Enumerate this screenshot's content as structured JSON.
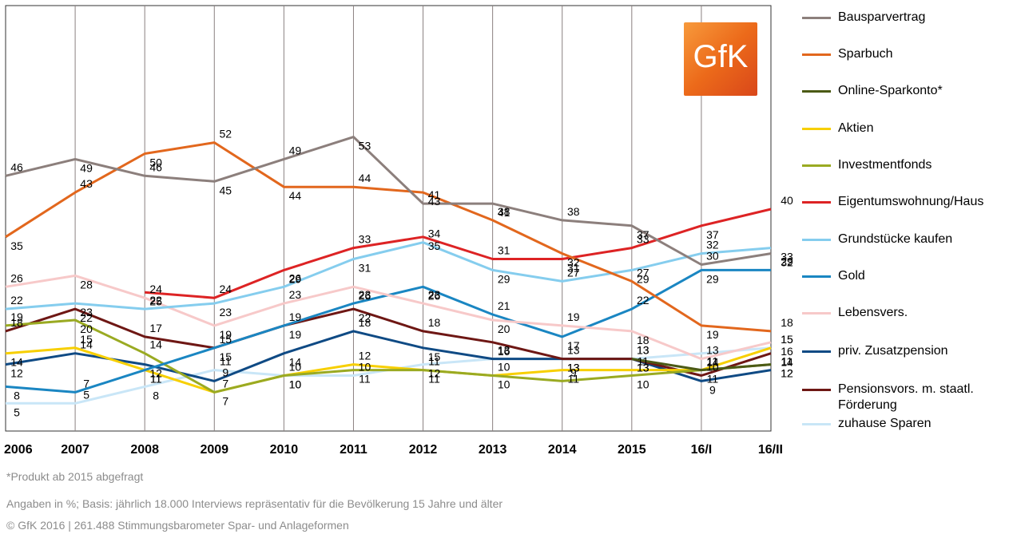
{
  "chart_data": {
    "type": "line",
    "title": "",
    "xlabel": "",
    "ylabel": "",
    "categories": [
      "2006",
      "2007",
      "2008",
      "2009",
      "2010",
      "2011",
      "2012",
      "2013",
      "2014",
      "2015",
      "16/I",
      "16/II"
    ],
    "ylim": [
      0,
      70
    ],
    "grid": "vertical",
    "legend_position": "right",
    "series": [
      {
        "name": "Bausparvertrag",
        "color": "#8c7f7c",
        "values": [
          46,
          49,
          46,
          45,
          49,
          53,
          41,
          41,
          38,
          37,
          30,
          32
        ]
      },
      {
        "name": "Sparbuch",
        "color": "#e2671d",
        "values": [
          35,
          43,
          50,
          52,
          44,
          44,
          43,
          38,
          32,
          27,
          19,
          18
        ]
      },
      {
        "name": "Online-Sparkonto*",
        "color": "#4b5a15",
        "values": [
          null,
          null,
          null,
          null,
          null,
          null,
          null,
          null,
          null,
          13,
          11,
          12
        ]
      },
      {
        "name": "Aktien",
        "color": "#f7cf00",
        "values": [
          14,
          15,
          11,
          7,
          10,
          12,
          11,
          10,
          11,
          11,
          11,
          15
        ]
      },
      {
        "name": "Investmentfonds",
        "color": "#9aaa22",
        "values": [
          19,
          20,
          14,
          7,
          10,
          11,
          11,
          10,
          9,
          10,
          11,
          12
        ]
      },
      {
        "name": "Eigentumswohnung/Haus",
        "color": "#dd2324",
        "values": [
          null,
          null,
          25,
          24,
          29,
          33,
          35,
          31,
          31,
          33,
          37,
          40
        ]
      },
      {
        "name": "Grundstücke kaufen",
        "color": "#85cdee",
        "values": [
          22,
          23,
          22,
          23,
          26,
          31,
          34,
          29,
          27,
          29,
          32,
          33
        ]
      },
      {
        "name": "Gold",
        "color": "#1a86c2",
        "values": [
          8,
          7,
          11,
          15,
          19,
          23,
          26,
          21,
          17,
          22,
          29,
          29
        ]
      },
      {
        "name": "Lebensvers.",
        "color": "#f7c9c9",
        "values": [
          26,
          28,
          24,
          19,
          23,
          26,
          23,
          20,
          19,
          18,
          13,
          16
        ]
      },
      {
        "name": "priv. Zusatzpension",
        "color": "#0f4a84",
        "values": [
          12,
          14,
          12,
          9,
          14,
          18,
          15,
          13,
          13,
          13,
          9,
          11
        ]
      },
      {
        "name": "Pensionsvors. m. staatl. Förderung",
        "color": "#6e1714",
        "values": [
          18,
          22,
          17,
          15,
          19,
          22,
          18,
          16,
          13,
          13,
          10,
          14
        ]
      },
      {
        "name": "zuhause Sparen",
        "color": "#c9e6f7",
        "values": [
          5,
          5,
          8,
          11,
          10,
          10,
          12,
          13,
          13,
          13,
          14,
          15
        ]
      }
    ]
  },
  "logo": {
    "text": "GfK"
  },
  "footnotes": [
    "*Produkt ab 2015 abgefragt",
    "Angaben in %; Basis: jährlich 18.000 Interviews repräsentativ für die Bevölkerung 15 Jahre und älter",
    "© GfK 2016 | 261.488 Stimmungsbarometer Spar- und Anlageformen"
  ]
}
